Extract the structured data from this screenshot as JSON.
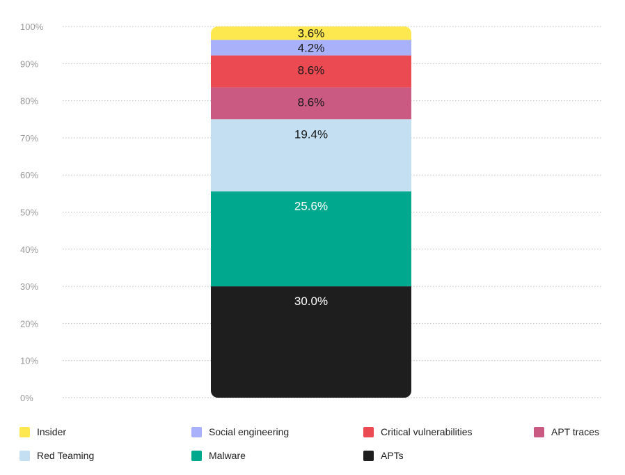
{
  "chart_data": {
    "type": "bar",
    "stacked": true,
    "categories": [
      ""
    ],
    "ylim": [
      0,
      100
    ],
    "y_ticks": [
      "0%",
      "10%",
      "20%",
      "30%",
      "40%",
      "50%",
      "60%",
      "70%",
      "80%",
      "90%",
      "100%"
    ],
    "grid": "horizontal dotted",
    "legend_position": "bottom",
    "series": [
      {
        "name": "APTs",
        "value": 30.0,
        "label": "30.0%",
        "color": "#1e1e1e",
        "label_color": "#ffffff"
      },
      {
        "name": "Malware",
        "value": 25.6,
        "label": "25.6%",
        "color": "#00a88e",
        "label_color": "#ffffff"
      },
      {
        "name": "Red Teaming",
        "value": 19.4,
        "label": "19.4%",
        "color": "#c5dff2",
        "label_color": "#1a1a1a"
      },
      {
        "name": "APT traces",
        "value": 8.6,
        "label": "8.6%",
        "color": "#cb5a82",
        "label_color": "#1a1a1a"
      },
      {
        "name": "Critical vulnerabilities",
        "value": 8.6,
        "label": "8.6%",
        "color": "#ec4a52",
        "label_color": "#1a1a1a"
      },
      {
        "name": "Social engineering",
        "value": 4.2,
        "label": "4.2%",
        "color": "#a9b1fb",
        "label_color": "#1a1a1a"
      },
      {
        "name": "Insider",
        "value": 3.6,
        "label": "3.6%",
        "color": "#fde94f",
        "label_color": "#1a1a1a"
      }
    ]
  },
  "legend": {
    "items": [
      {
        "label": "Insider",
        "color": "#fde94f"
      },
      {
        "label": "Social engineering",
        "color": "#a9b1fb"
      },
      {
        "label": "Critical vulnerabilities",
        "color": "#ec4a52"
      },
      {
        "label": "APT traces",
        "color": "#cb5a82"
      },
      {
        "label": "Red Teaming",
        "color": "#c5dff2"
      },
      {
        "label": "Malware",
        "color": "#00a88e"
      },
      {
        "label": "APTs",
        "color": "#1e1e1e"
      }
    ]
  }
}
